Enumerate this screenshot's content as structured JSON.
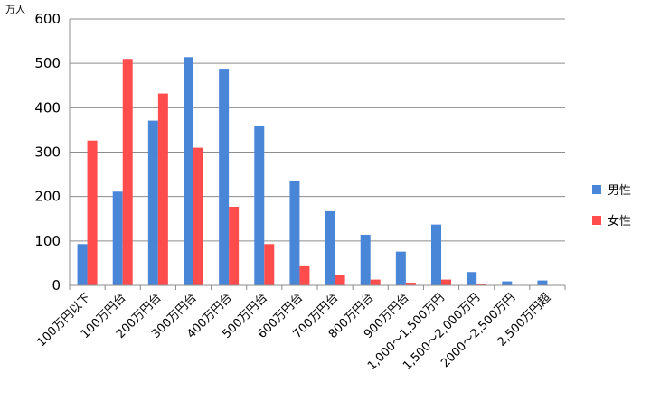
{
  "chart_data": {
    "type": "bar",
    "title": "",
    "xlabel": "",
    "ylabel": "",
    "y_unit": "万人",
    "ylim": [
      0,
      600
    ],
    "yticks": [
      0,
      100,
      200,
      300,
      400,
      500,
      600
    ],
    "grid": true,
    "legend_position": "right",
    "categories": [
      "100万円以下",
      "100万円台",
      "200万円台",
      "300万円台",
      "400万円台",
      "500万円台",
      "600万円台",
      "700万円台",
      "800万円台",
      "900万円台",
      "1,000～1,500万円",
      "1,500～2,000万円",
      "2000～2,500万円",
      "2,500万円超"
    ],
    "series": [
      {
        "name": "男性",
        "color": "#4a86d8",
        "values": [
          93,
          211,
          371,
          514,
          488,
          358,
          236,
          167,
          114,
          76,
          137,
          30,
          9,
          11
        ]
      },
      {
        "name": "女性",
        "color": "#ff4d4d",
        "values": [
          326,
          510,
          432,
          310,
          177,
          93,
          45,
          24,
          13,
          6,
          13,
          2,
          1,
          1
        ]
      }
    ]
  }
}
